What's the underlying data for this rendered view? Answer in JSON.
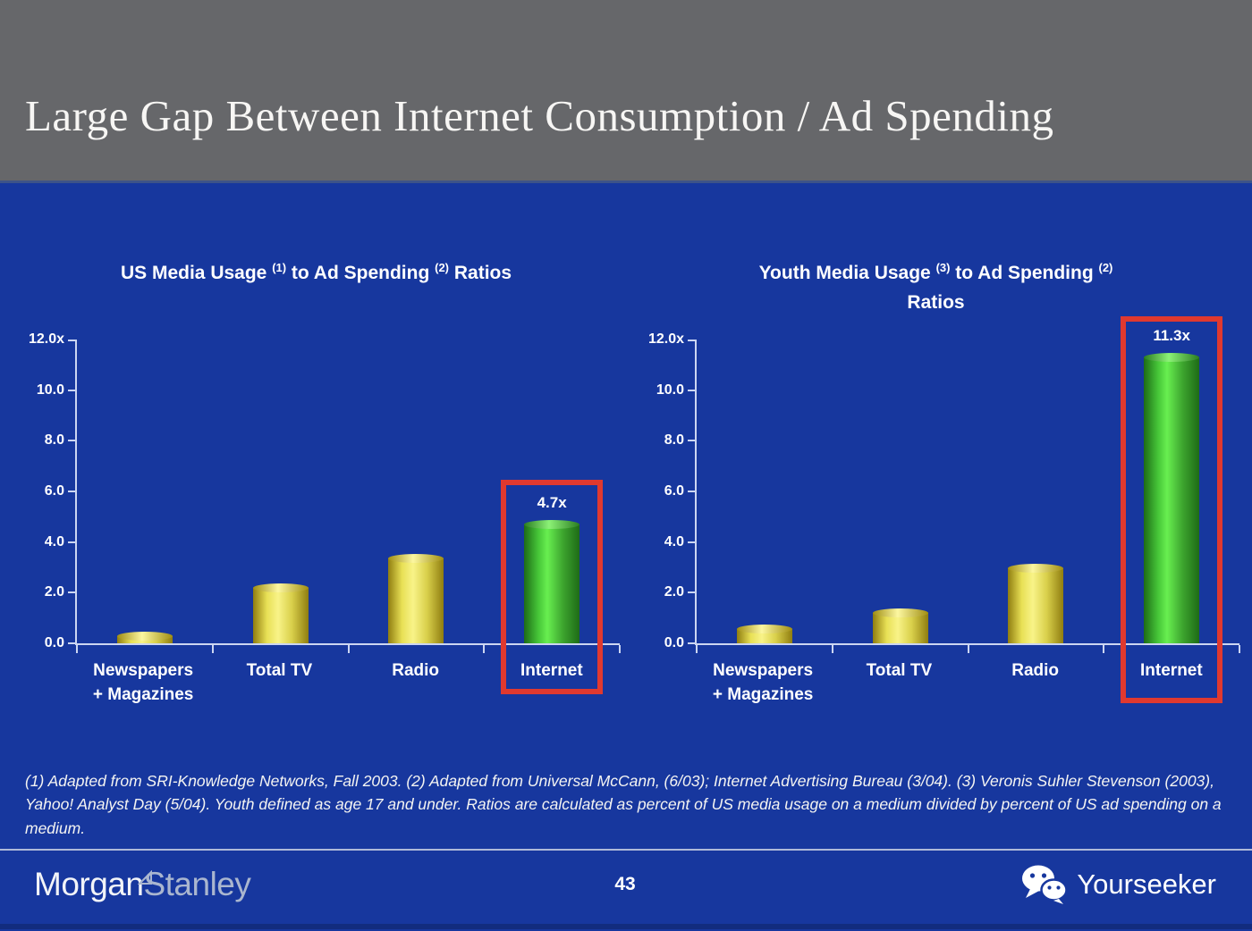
{
  "slide": {
    "title": "Large Gap Between Internet Consumption / Ad Spending",
    "page_number": "43"
  },
  "footnote": "(1) Adapted from SRI-Knowledge Networks, Fall 2003.  (2) Adapted from Universal McCann, (6/03); Internet Advertising Bureau (3/04). (3) Veronis Suhler Stevenson (2003), Yahoo! Analyst Day (5/04).  Youth defined as age 17 and under.  Ratios are calculated as percent of US media usage on a medium divided by percent of US ad spending on a medium.",
  "footer": {
    "brand_left": {
      "part1": "Morgan",
      "part2": "Stanley",
      "icon": "triangle-icon"
    },
    "brand_right": {
      "label": "Yourseeker",
      "icon": "wechat-icon"
    }
  },
  "colors": {
    "background_blue": "#17379E",
    "header_gray": "#66676A",
    "bar_yellow": "#F8F388",
    "bar_green": "#68EF50",
    "highlight_red": "#E0392F",
    "axis": "#CCD6F2",
    "text": "#FFFFFF"
  },
  "chart_data": [
    {
      "type": "bar",
      "title": "US Media Usage (1) to Ad Spending (2) Ratios",
      "title_parts": {
        "pre": "US Media Usage ",
        "sup1": "(1)",
        "mid": " to Ad Spending ",
        "sup2": "(2)",
        "post": " Ratios",
        "line2": ""
      },
      "categories": [
        "Newspapers + Magazines",
        "Total TV",
        "Radio",
        "Internet"
      ],
      "values": [
        0.3,
        2.2,
        3.35,
        4.7
      ],
      "bar_colors": [
        "yellow",
        "yellow",
        "yellow",
        "green"
      ],
      "value_labels": [
        null,
        null,
        null,
        "4.7x"
      ],
      "highlight_index": 3,
      "highlight_label": "Internet",
      "ylim": [
        0,
        12
      ],
      "yticks": [
        "12.0x",
        "10.0",
        "8.0",
        "6.0",
        "4.0",
        "2.0",
        "0.0"
      ],
      "ytick_values": [
        12,
        10,
        8,
        6,
        4,
        2,
        0
      ],
      "grid": false,
      "legend": false
    },
    {
      "type": "bar",
      "title": "Youth Media Usage (3) to Ad Spending (2) Ratios",
      "title_parts": {
        "pre": "Youth Media Usage ",
        "sup1": "(3)",
        "mid": " to Ad Spending ",
        "sup2": "(2)",
        "post": "",
        "line2": "Ratios"
      },
      "categories": [
        "Newspapers + Magazines",
        "Total TV",
        "Radio",
        "Internet"
      ],
      "values": [
        0.55,
        1.2,
        2.95,
        11.3
      ],
      "bar_colors": [
        "yellow",
        "yellow",
        "yellow",
        "green"
      ],
      "value_labels": [
        null,
        null,
        null,
        "11.3x"
      ],
      "highlight_index": 3,
      "highlight_label": "Internet",
      "ylim": [
        0,
        12
      ],
      "yticks": [
        "12.0x",
        "10.0",
        "8.0",
        "6.0",
        "4.0",
        "2.0",
        "0.0"
      ],
      "ytick_values": [
        12,
        10,
        8,
        6,
        4,
        2,
        0
      ],
      "grid": false,
      "legend": false
    }
  ]
}
